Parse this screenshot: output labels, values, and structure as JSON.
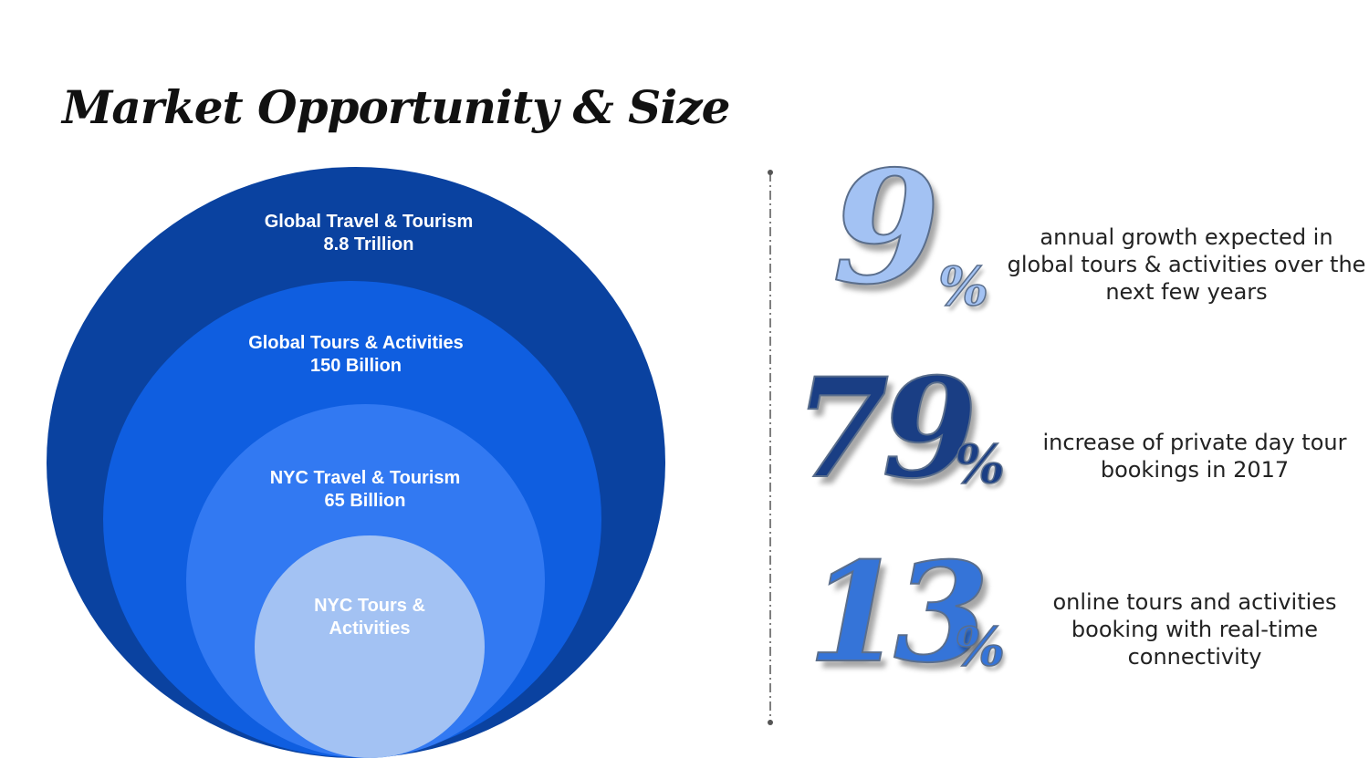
{
  "title": "Market Opportunity & Size",
  "colors": {
    "ring1": "#0a42a0",
    "ring2": "#0f5ee0",
    "ring3": "#3279f2",
    "ring4": "#a3c2f3",
    "stat_light": "#a3c2f3",
    "stat_dark": "#1a3e84",
    "stat_mid": "#3574d8"
  },
  "market": [
    {
      "name": "Global Travel & Tourism",
      "value": "8.8 Trillion"
    },
    {
      "name": "Global Tours & Activities",
      "value": "150 Billion"
    },
    {
      "name": "NYC Travel & Tourism",
      "value": "65 Billion"
    },
    {
      "name": "NYC Tours &",
      "value": "Activities"
    }
  ],
  "stats": [
    {
      "number": "9",
      "unit": "%",
      "description": "annual growth expected in global tours & activities over the next few years"
    },
    {
      "number": "79",
      "unit": "%",
      "description": "increase of private day tour bookings in 2017"
    },
    {
      "number": "13",
      "unit": "%",
      "description": "online tours and activities booking with real-time connectivity"
    }
  ]
}
